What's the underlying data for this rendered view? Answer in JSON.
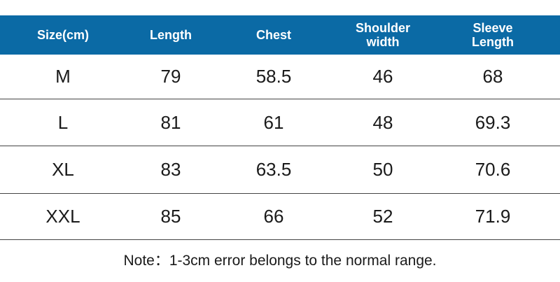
{
  "table": {
    "header": [
      "Size(cm)",
      "Length",
      "Chest",
      "Shoulder width",
      "Sleeve Length"
    ],
    "rows": [
      [
        "M",
        79,
        58.5,
        46,
        68
      ],
      [
        "L",
        81,
        61,
        48,
        69.3
      ],
      [
        "XL",
        83,
        63.5,
        50,
        70.6
      ],
      [
        "XXL",
        85,
        66,
        52,
        71.9
      ]
    ]
  },
  "note": "Note：1-3cm error belongs to the normal range."
}
